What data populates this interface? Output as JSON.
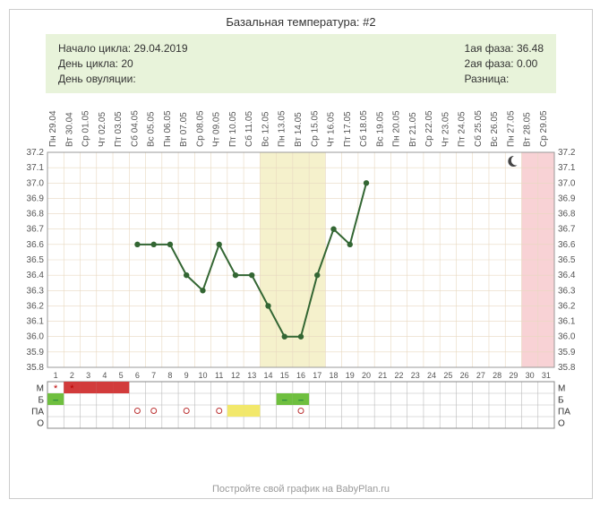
{
  "title": "Базальная температура: #2",
  "info": {
    "left": {
      "cycle_start_label": "Начало цикла:",
      "cycle_start": "29.04.2019",
      "cycle_day_label": "День цикла:",
      "cycle_day": "20",
      "ovu_day_label": "День овуляции:"
    },
    "right": {
      "phase1_label": "1ая фаза:",
      "phase1": "36.48",
      "phase2_label": "2ая фаза:",
      "phase2": "0.00",
      "diff_label": "Разница:"
    }
  },
  "chart": {
    "days": 31,
    "date_labels": [
      "Пн 29.04",
      "Вт 30.04",
      "Ср 01.05",
      "Чт 02.05",
      "Пт 03.05",
      "Сб 04.05",
      "Вс 05.05",
      "Пн 06.05",
      "Вт 07.05",
      "Ср 08.05",
      "Чт 09.05",
      "Пт 10.05",
      "Сб 11.05",
      "Вс 12.05",
      "Пн 13.05",
      "Вт 14.05",
      "Ср 15.05",
      "Чт 16.05",
      "Пт 17.05",
      "Сб 18.05",
      "Вс 19.05",
      "Пн 20.05",
      "Вт 21.05",
      "Ср 22.05",
      "Чт 23.05",
      "Пт 24.05",
      "Сб 25.05",
      "Вс 26.05",
      "Пн 27.05",
      "Вт 28.05",
      "Ср 29.05"
    ],
    "y_min": 35.8,
    "y_max": 37.2,
    "y_step": 0.1,
    "temps": [
      null,
      null,
      null,
      null,
      null,
      36.6,
      36.6,
      36.6,
      36.4,
      36.3,
      36.6,
      36.4,
      36.4,
      36.2,
      36.0,
      36.0,
      36.4,
      36.7,
      36.6,
      37.0,
      null,
      null,
      null,
      null,
      null,
      null,
      null,
      null,
      null,
      null,
      null
    ],
    "highlight_yellow": {
      "start": 14,
      "end": 17
    },
    "highlight_pink_start": 30,
    "moon_day": 29,
    "line_color": "#336633",
    "marker_color": "#336633",
    "grid_color": "#e8d8c0",
    "grid_minor": "#f4ece0",
    "bg": "#ffffff",
    "menses": [
      false,
      true,
      true,
      true,
      true,
      false,
      false,
      false,
      false,
      false,
      false,
      false,
      false,
      false,
      false,
      false,
      false,
      false,
      false,
      false,
      false,
      false,
      false,
      false,
      false,
      false,
      false,
      false,
      false,
      false,
      false
    ],
    "row_M_star": [
      true,
      true,
      false,
      false,
      false,
      false,
      false,
      false,
      false,
      false,
      false,
      false,
      false,
      false,
      false,
      false,
      false,
      false,
      false,
      false,
      false,
      false,
      false,
      false,
      false,
      false,
      false,
      false,
      false,
      false,
      false
    ],
    "row_B_green": [
      true,
      false,
      false,
      false,
      false,
      false,
      false,
      false,
      false,
      false,
      false,
      false,
      false,
      false,
      true,
      true,
      false,
      false,
      false,
      false,
      false,
      false,
      false,
      false,
      false,
      false,
      false,
      false,
      false,
      false,
      false
    ],
    "row_PA_circle": [
      false,
      false,
      false,
      false,
      false,
      true,
      true,
      false,
      true,
      false,
      true,
      false,
      false,
      false,
      false,
      true,
      false,
      false,
      false,
      false,
      false,
      false,
      false,
      false,
      false,
      false,
      false,
      false,
      false,
      false,
      false
    ],
    "row_PA_yellow": [
      false,
      false,
      false,
      false,
      false,
      false,
      false,
      false,
      false,
      false,
      false,
      true,
      true,
      false,
      false,
      false,
      false,
      false,
      false,
      false,
      false,
      false,
      false,
      false,
      false,
      false,
      false,
      false,
      false,
      false,
      false
    ],
    "row_labels": [
      "М",
      "Б",
      "ПА",
      "О"
    ]
  },
  "footer": "Постройте свой график на BabyPlan.ru"
}
